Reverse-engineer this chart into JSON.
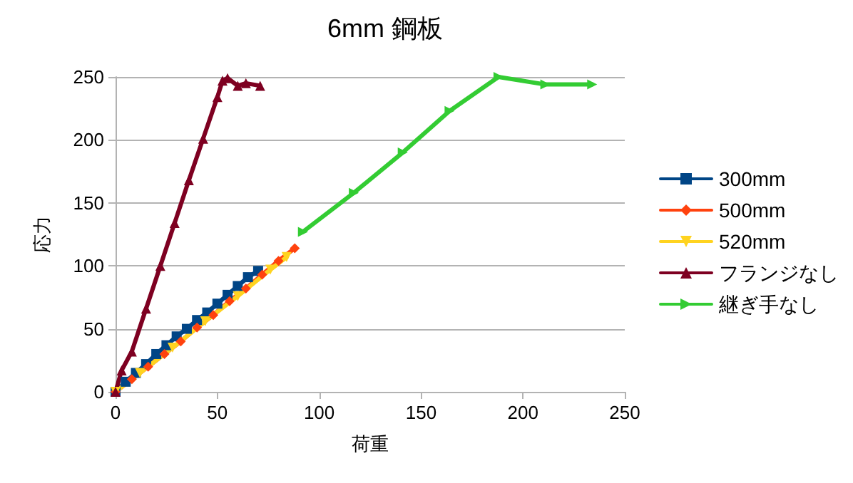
{
  "chart_data": {
    "type": "line",
    "title": "6mm 鋼板",
    "xlabel": "荷重",
    "ylabel": "応力",
    "xlim": [
      0,
      250
    ],
    "xticks": [
      0,
      50,
      100,
      150,
      200,
      250
    ],
    "ylim": [
      0,
      250
    ],
    "yticks": [
      0,
      50,
      100,
      150,
      200,
      250
    ],
    "grid": "y",
    "legend": "right",
    "line_style": "solid",
    "series": [
      {
        "name": "300mm",
        "color": "#004586",
        "marker": "square",
        "x": [
          0,
          5,
          10,
          15,
          20,
          25,
          30,
          35,
          40,
          45,
          50,
          55,
          60,
          65,
          70
        ],
        "values": [
          0,
          8,
          15,
          22,
          30,
          37,
          44,
          50,
          57,
          63,
          70,
          77,
          84,
          91,
          96
        ]
      },
      {
        "name": "500mm",
        "color": "#ff420e",
        "marker": "diamond",
        "x": [
          0,
          8,
          16,
          24,
          32,
          40,
          48,
          56,
          64,
          72,
          80,
          88
        ],
        "values": [
          0,
          10,
          20,
          30,
          40,
          51,
          61,
          72,
          82,
          93,
          104,
          114
        ]
      },
      {
        "name": "520mm",
        "color": "#ffd320",
        "marker": "triangle-down",
        "x": [
          0,
          12,
          28,
          44,
          60,
          76,
          84
        ],
        "values": [
          0,
          15,
          35,
          56,
          76,
          97,
          107
        ]
      },
      {
        "name": "フランジなし",
        "color": "#7e0021",
        "marker": "triangle",
        "x": [
          0,
          3,
          8,
          15,
          22,
          29,
          36,
          43,
          50,
          52.5,
          55,
          60,
          64,
          71
        ],
        "values": [
          0,
          17,
          32,
          66,
          100,
          134,
          168,
          201,
          234,
          247,
          249,
          243,
          245,
          243
        ]
      },
      {
        "name": "継ぎ手なし",
        "color": "#33cc33",
        "marker": "triangle-right",
        "x": [
          92,
          117,
          141,
          164,
          188,
          211,
          234
        ],
        "values": [
          127,
          158,
          190,
          223,
          250,
          244,
          244
        ]
      }
    ]
  }
}
